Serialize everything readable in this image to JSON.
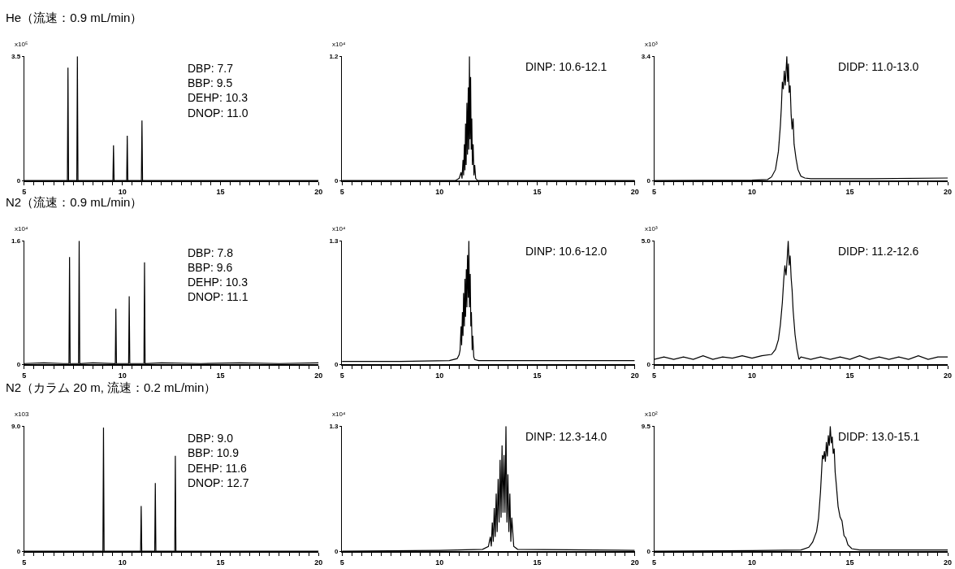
{
  "chart_data": [
    {
      "type": "line",
      "title": "He（流速：0.9 mL/min）",
      "ylabel": "x10⁵",
      "xlim": [
        5,
        20
      ],
      "ylim": [
        0,
        3.5
      ],
      "yticks": [
        0,
        3.5
      ],
      "xticks": [
        5,
        {
          "value": 5.5,
          "label": null
        },
        {
          "value": 6,
          "label": null
        },
        {
          "value": 6.5,
          "label": null
        },
        {
          "value": 7,
          "label": null
        },
        {
          "value": 7.5,
          "label": null
        },
        {
          "value": 8,
          "label": null
        },
        {
          "value": 8.5,
          "label": null
        },
        {
          "value": 9,
          "label": null
        },
        {
          "value": 9.5,
          "label": null
        },
        10,
        {
          "value": 10.5,
          "label": null
        },
        {
          "value": 11,
          "label": null
        },
        {
          "value": 11.5,
          "label": null
        },
        {
          "value": 12,
          "label": null
        },
        {
          "value": 12.5,
          "label": null
        },
        {
          "value": 13,
          "label": null
        },
        {
          "value": 13.5,
          "label": null
        },
        {
          "value": 14,
          "label": null
        },
        {
          "value": 14.5,
          "label": null
        },
        15,
        {
          "value": 15.5,
          "label": null
        },
        {
          "value": 16,
          "label": null
        },
        {
          "value": 16.5,
          "label": null
        },
        {
          "value": 17,
          "label": null
        },
        {
          "value": 17.5,
          "label": null
        },
        {
          "value": 18,
          "label": null
        },
        {
          "value": 18.5,
          "label": null
        },
        {
          "value": 19,
          "label": null
        },
        {
          "value": 19.5,
          "label": null
        },
        20
      ],
      "grid": false,
      "legend": false,
      "line_style": "solid",
      "annotations": [
        "DBP: 7.7",
        "BBP: 9.5",
        "DEHP: 10.3",
        "DNOP: 11.0"
      ],
      "series": [
        {
          "color": "#000000",
          "x": [
            5,
            7.2,
            7.23,
            7.26,
            7.68,
            7.71,
            7.74,
            9.52,
            9.55,
            9.58,
            10.22,
            10.25,
            10.28,
            10.97,
            11.0,
            11.03,
            20
          ],
          "values": [
            0,
            0,
            3.18,
            0,
            0,
            3.5,
            0,
            0,
            0.99,
            0,
            0,
            1.26,
            0,
            0,
            1.69,
            0,
            0
          ]
        }
      ]
    },
    {
      "type": "line",
      "ylabel": "x10⁴",
      "xlim": [
        5,
        20
      ],
      "ylim": [
        0,
        1.2
      ],
      "yticks": [
        0,
        1.2
      ],
      "xticks": [
        5,
        {
          "value": 5.5,
          "label": null
        },
        {
          "value": 6,
          "label": null
        },
        {
          "value": 6.5,
          "label": null
        },
        {
          "value": 7,
          "label": null
        },
        {
          "value": 7.5,
          "label": null
        },
        {
          "value": 8,
          "label": null
        },
        {
          "value": 8.5,
          "label": null
        },
        {
          "value": 9,
          "label": null
        },
        {
          "value": 9.5,
          "label": null
        },
        10,
        {
          "value": 10.5,
          "label": null
        },
        {
          "value": 11,
          "label": null
        },
        {
          "value": 11.5,
          "label": null
        },
        {
          "value": 12,
          "label": null
        },
        {
          "value": 12.5,
          "label": null
        },
        {
          "value": 13,
          "label": null
        },
        {
          "value": 13.5,
          "label": null
        },
        {
          "value": 14,
          "label": null
        },
        {
          "value": 14.5,
          "label": null
        },
        15,
        {
          "value": 15.5,
          "label": null
        },
        {
          "value": 16,
          "label": null
        },
        {
          "value": 16.5,
          "label": null
        },
        {
          "value": 17,
          "label": null
        },
        {
          "value": 17.5,
          "label": null
        },
        {
          "value": 18,
          "label": null
        },
        {
          "value": 18.5,
          "label": null
        },
        {
          "value": 19,
          "label": null
        },
        {
          "value": 19.5,
          "label": null
        },
        20
      ],
      "grid": false,
      "legend": false,
      "line_style": "solid",
      "annotations": [
        "DINP: 10.6-12.1"
      ],
      "series": [
        {
          "color": "#000000",
          "x": [
            5,
            10.8,
            11.0,
            11.1,
            11.15,
            11.2,
            11.23,
            11.27,
            11.3,
            11.33,
            11.36,
            11.4,
            11.43,
            11.47,
            11.5,
            11.53,
            11.56,
            11.59,
            11.62,
            11.65,
            11.68,
            11.72,
            11.76,
            11.8,
            11.85,
            11.95,
            20
          ],
          "values": [
            0,
            0,
            0.02,
            0.08,
            0.02,
            0.2,
            0.05,
            0.35,
            0.1,
            0.55,
            0.15,
            0.75,
            0.25,
            0.9,
            0.3,
            1.2,
            0.4,
            1.0,
            0.3,
            0.6,
            0.15,
            0.35,
            0.05,
            0.15,
            0.02,
            0,
            0
          ]
        }
      ]
    },
    {
      "type": "line",
      "ylabel": "x10³",
      "xlim": [
        5,
        20
      ],
      "ylim": [
        0,
        3.4
      ],
      "yticks": [
        0,
        3.4
      ],
      "xticks": [
        5,
        {
          "value": 5.5,
          "label": null
        },
        {
          "value": 6,
          "label": null
        },
        {
          "value": 6.5,
          "label": null
        },
        {
          "value": 7,
          "label": null
        },
        {
          "value": 7.5,
          "label": null
        },
        {
          "value": 8,
          "label": null
        },
        {
          "value": 8.5,
          "label": null
        },
        {
          "value": 9,
          "label": null
        },
        {
          "value": 9.5,
          "label": null
        },
        10,
        {
          "value": 10.5,
          "label": null
        },
        {
          "value": 11,
          "label": null
        },
        {
          "value": 11.5,
          "label": null
        },
        {
          "value": 12,
          "label": null
        },
        {
          "value": 12.5,
          "label": null
        },
        {
          "value": 13,
          "label": null
        },
        {
          "value": 13.5,
          "label": null
        },
        {
          "value": 14,
          "label": null
        },
        {
          "value": 14.5,
          "label": null
        },
        15,
        {
          "value": 15.5,
          "label": null
        },
        {
          "value": 16,
          "label": null
        },
        {
          "value": 16.5,
          "label": null
        },
        {
          "value": 17,
          "label": null
        },
        {
          "value": 17.5,
          "label": null
        },
        {
          "value": 18,
          "label": null
        },
        {
          "value": 18.5,
          "label": null
        },
        {
          "value": 19,
          "label": null
        },
        {
          "value": 19.5,
          "label": null
        },
        20
      ],
      "grid": false,
      "legend": false,
      "line_style": "solid",
      "annotations": [
        "DIDP: 11.0-13.0"
      ],
      "series": [
        {
          "color": "#000000",
          "x": [
            5,
            10,
            10.8,
            11.0,
            11.2,
            11.35,
            11.45,
            11.5,
            11.55,
            11.6,
            11.65,
            11.7,
            11.75,
            11.78,
            11.82,
            11.86,
            11.9,
            11.95,
            12.0,
            12.05,
            12.1,
            12.15,
            12.25,
            12.35,
            12.5,
            12.7,
            13,
            16,
            20
          ],
          "values": [
            0,
            0.01,
            0.03,
            0.1,
            0.3,
            0.8,
            1.5,
            2.0,
            2.7,
            2.5,
            3.0,
            2.6,
            3.1,
            3.4,
            2.7,
            3.2,
            2.4,
            2.6,
            1.8,
            1.4,
            1.7,
            1.0,
            0.6,
            0.3,
            0.12,
            0.07,
            0.05,
            0.05,
            0.07
          ]
        }
      ]
    },
    {
      "type": "line",
      "title": "N2（流速：0.9 mL/min）",
      "ylabel": "x10⁴",
      "xlim": [
        5,
        20
      ],
      "ylim": [
        0,
        1.6
      ],
      "yticks": [
        0,
        1.6
      ],
      "xticks": [
        5,
        {
          "value": 5.5,
          "label": null
        },
        {
          "value": 6,
          "label": null
        },
        {
          "value": 6.5,
          "label": null
        },
        {
          "value": 7,
          "label": null
        },
        {
          "value": 7.5,
          "label": null
        },
        {
          "value": 8,
          "label": null
        },
        {
          "value": 8.5,
          "label": null
        },
        {
          "value": 9,
          "label": null
        },
        {
          "value": 9.5,
          "label": null
        },
        10,
        {
          "value": 10.5,
          "label": null
        },
        {
          "value": 11,
          "label": null
        },
        {
          "value": 11.5,
          "label": null
        },
        {
          "value": 12,
          "label": null
        },
        {
          "value": 12.5,
          "label": null
        },
        {
          "value": 13,
          "label": null
        },
        {
          "value": 13.5,
          "label": null
        },
        {
          "value": 14,
          "label": null
        },
        {
          "value": 14.5,
          "label": null
        },
        15,
        {
          "value": 15.5,
          "label": null
        },
        {
          "value": 16,
          "label": null
        },
        {
          "value": 16.5,
          "label": null
        },
        {
          "value": 17,
          "label": null
        },
        {
          "value": 17.5,
          "label": null
        },
        {
          "value": 18,
          "label": null
        },
        {
          "value": 18.5,
          "label": null
        },
        {
          "value": 19,
          "label": null
        },
        {
          "value": 19.5,
          "label": null
        },
        20
      ],
      "grid": false,
      "legend": false,
      "line_style": "solid",
      "annotations": [
        "DBP: 7.8",
        "BBP: 9.6",
        "DEHP: 10.3",
        "DNOP: 11.1"
      ],
      "series": [
        {
          "color": "#000000",
          "x": [
            5,
            6,
            7,
            7.28,
            7.31,
            7.34,
            7.77,
            7.8,
            7.83,
            8.5,
            9.64,
            9.67,
            9.7,
            10.32,
            10.35,
            10.38,
            11.1,
            11.13,
            11.16,
            12,
            14,
            16,
            18,
            20
          ],
          "values": [
            0.01,
            0.02,
            0.01,
            0.01,
            1.39,
            0.01,
            0.01,
            1.6,
            0.01,
            0.02,
            0.01,
            0.72,
            0.01,
            0.01,
            0.88,
            0.01,
            0.01,
            1.32,
            0.01,
            0.02,
            0.01,
            0.02,
            0.01,
            0.02
          ]
        }
      ]
    },
    {
      "type": "line",
      "ylabel": "x10⁴",
      "xlim": [
        5,
        20
      ],
      "ylim": [
        0,
        1.3
      ],
      "yticks": [
        0,
        1.3
      ],
      "xticks": [
        5,
        {
          "value": 5.5,
          "label": null
        },
        {
          "value": 6,
          "label": null
        },
        {
          "value": 6.5,
          "label": null
        },
        {
          "value": 7,
          "label": null
        },
        {
          "value": 7.5,
          "label": null
        },
        {
          "value": 8,
          "label": null
        },
        {
          "value": 8.5,
          "label": null
        },
        {
          "value": 9,
          "label": null
        },
        {
          "value": 9.5,
          "label": null
        },
        10,
        {
          "value": 10.5,
          "label": null
        },
        {
          "value": 11,
          "label": null
        },
        {
          "value": 11.5,
          "label": null
        },
        {
          "value": 12,
          "label": null
        },
        {
          "value": 12.5,
          "label": null
        },
        {
          "value": 13,
          "label": null
        },
        {
          "value": 13.5,
          "label": null
        },
        {
          "value": 14,
          "label": null
        },
        {
          "value": 14.5,
          "label": null
        },
        15,
        {
          "value": 15.5,
          "label": null
        },
        {
          "value": 16,
          "label": null
        },
        {
          "value": 16.5,
          "label": null
        },
        {
          "value": 17,
          "label": null
        },
        {
          "value": 17.5,
          "label": null
        },
        {
          "value": 18,
          "label": null
        },
        {
          "value": 18.5,
          "label": null
        },
        {
          "value": 19,
          "label": null
        },
        {
          "value": 19.5,
          "label": null
        },
        20
      ],
      "grid": false,
      "legend": false,
      "line_style": "solid",
      "annotations": [
        "DINP: 10.6-12.0"
      ],
      "series": [
        {
          "color": "#000000",
          "x": [
            5,
            8,
            10.5,
            10.9,
            11.0,
            11.05,
            11.1,
            11.13,
            11.17,
            11.2,
            11.23,
            11.27,
            11.3,
            11.33,
            11.37,
            11.4,
            11.43,
            11.47,
            11.5,
            11.53,
            11.57,
            11.6,
            11.63,
            11.67,
            11.7,
            11.75,
            11.8,
            12.0,
            15,
            20
          ],
          "values": [
            0.03,
            0.03,
            0.04,
            0.06,
            0.1,
            0.15,
            0.4,
            0.2,
            0.55,
            0.3,
            0.75,
            0.4,
            0.9,
            0.5,
            1.0,
            0.6,
            1.15,
            0.7,
            1.3,
            0.6,
            0.95,
            0.4,
            0.55,
            0.15,
            0.3,
            0.08,
            0.05,
            0.04,
            0.04,
            0.04
          ]
        }
      ]
    },
    {
      "type": "line",
      "ylabel": "x10³",
      "xlim": [
        5,
        20
      ],
      "ylim": [
        0,
        5.0
      ],
      "yticks": [
        0,
        {
          "value": 5,
          "label": "5.0"
        }
      ],
      "xticks": [
        5,
        {
          "value": 5.5,
          "label": null
        },
        {
          "value": 6,
          "label": null
        },
        {
          "value": 6.5,
          "label": null
        },
        {
          "value": 7,
          "label": null
        },
        {
          "value": 7.5,
          "label": null
        },
        {
          "value": 8,
          "label": null
        },
        {
          "value": 8.5,
          "label": null
        },
        {
          "value": 9,
          "label": null
        },
        {
          "value": 9.5,
          "label": null
        },
        10,
        {
          "value": 10.5,
          "label": null
        },
        {
          "value": 11,
          "label": null
        },
        {
          "value": 11.5,
          "label": null
        },
        {
          "value": 12,
          "label": null
        },
        {
          "value": 12.5,
          "label": null
        },
        {
          "value": 13,
          "label": null
        },
        {
          "value": 13.5,
          "label": null
        },
        {
          "value": 14,
          "label": null
        },
        {
          "value": 14.5,
          "label": null
        },
        15,
        {
          "value": 15.5,
          "label": null
        },
        {
          "value": 16,
          "label": null
        },
        {
          "value": 16.5,
          "label": null
        },
        {
          "value": 17,
          "label": null
        },
        {
          "value": 17.5,
          "label": null
        },
        {
          "value": 18,
          "label": null
        },
        {
          "value": 18.5,
          "label": null
        },
        {
          "value": 19,
          "label": null
        },
        {
          "value": 19.5,
          "label": null
        },
        20
      ],
      "grid": false,
      "legend": false,
      "line_style": "solid",
      "annotations": [
        "DIDP: 11.2-12.6"
      ],
      "series": [
        {
          "color": "#000000",
          "x": [
            5,
            5.5,
            6,
            6.5,
            7,
            7.5,
            8,
            8.5,
            9,
            9.5,
            10,
            10.5,
            11.0,
            11.2,
            11.35,
            11.45,
            11.55,
            11.62,
            11.68,
            11.74,
            11.8,
            11.85,
            11.9,
            11.95,
            12.0,
            12.05,
            12.1,
            12.2,
            12.3,
            12.4,
            12.5,
            13,
            13.5,
            14,
            14.5,
            15,
            15.5,
            16,
            16.5,
            17,
            17.5,
            18,
            18.5,
            19,
            19.5,
            20
          ],
          "values": [
            0.2,
            0.3,
            0.2,
            0.3,
            0.2,
            0.35,
            0.2,
            0.3,
            0.25,
            0.35,
            0.25,
            0.35,
            0.4,
            0.6,
            1.0,
            1.6,
            2.5,
            3.4,
            4.0,
            3.6,
            4.3,
            5.0,
            4.0,
            4.4,
            3.5,
            3.0,
            2.2,
            1.2,
            0.6,
            0.2,
            0.3,
            0.2,
            0.3,
            0.2,
            0.3,
            0.2,
            0.35,
            0.2,
            0.3,
            0.2,
            0.3,
            0.2,
            0.35,
            0.2,
            0.3,
            0.3
          ]
        }
      ]
    },
    {
      "type": "line",
      "title": "N2（カラム 20 m, 流速：0.2 mL/min）",
      "ylabel": "x103",
      "xlim": [
        5,
        20
      ],
      "ylim": [
        0,
        9.0
      ],
      "yticks": [
        0,
        {
          "value": 9,
          "label": "9.0"
        }
      ],
      "xticks": [
        5,
        {
          "value": 5.5,
          "label": null
        },
        {
          "value": 6,
          "label": null
        },
        {
          "value": 6.5,
          "label": null
        },
        {
          "value": 7,
          "label": null
        },
        {
          "value": 7.5,
          "label": null
        },
        {
          "value": 8,
          "label": null
        },
        {
          "value": 8.5,
          "label": null
        },
        {
          "value": 9,
          "label": null
        },
        {
          "value": 9.5,
          "label": null
        },
        10,
        {
          "value": 10.5,
          "label": null
        },
        {
          "value": 11,
          "label": null
        },
        {
          "value": 11.5,
          "label": null
        },
        {
          "value": 12,
          "label": null
        },
        {
          "value": 12.5,
          "label": null
        },
        {
          "value": 13,
          "label": null
        },
        {
          "value": 13.5,
          "label": null
        },
        {
          "value": 14,
          "label": null
        },
        {
          "value": 14.5,
          "label": null
        },
        15,
        {
          "value": 15.5,
          "label": null
        },
        {
          "value": 16,
          "label": null
        },
        {
          "value": 16.5,
          "label": null
        },
        {
          "value": 17,
          "label": null
        },
        {
          "value": 17.5,
          "label": null
        },
        {
          "value": 18,
          "label": null
        },
        {
          "value": 18.5,
          "label": null
        },
        {
          "value": 19,
          "label": null
        },
        {
          "value": 19.5,
          "label": null
        },
        20
      ],
      "grid": false,
      "legend": false,
      "line_style": "solid",
      "annotations": [
        "DBP: 9.0",
        "BBP: 10.9",
        "DEHP: 11.6",
        "DNOP: 12.7"
      ],
      "series": [
        {
          "color": "#000000",
          "x": [
            5,
            9.01,
            9.04,
            9.07,
            10.93,
            10.96,
            10.99,
            11.65,
            11.68,
            11.71,
            12.67,
            12.7,
            12.73,
            20
          ],
          "values": [
            0,
            0,
            8.9,
            0,
            0,
            3.26,
            0,
            0,
            4.91,
            0,
            0,
            6.87,
            0,
            0
          ]
        }
      ]
    },
    {
      "type": "line",
      "ylabel": "x10⁴",
      "xlim": [
        5,
        20
      ],
      "ylim": [
        0,
        1.3
      ],
      "yticks": [
        0,
        1.3
      ],
      "xticks": [
        5,
        {
          "value": 5.5,
          "label": null
        },
        {
          "value": 6,
          "label": null
        },
        {
          "value": 6.5,
          "label": null
        },
        {
          "value": 7,
          "label": null
        },
        {
          "value": 7.5,
          "label": null
        },
        {
          "value": 8,
          "label": null
        },
        {
          "value": 8.5,
          "label": null
        },
        {
          "value": 9,
          "label": null
        },
        {
          "value": 9.5,
          "label": null
        },
        10,
        {
          "value": 10.5,
          "label": null
        },
        {
          "value": 11,
          "label": null
        },
        {
          "value": 11.5,
          "label": null
        },
        {
          "value": 12,
          "label": null
        },
        {
          "value": 12.5,
          "label": null
        },
        {
          "value": 13,
          "label": null
        },
        {
          "value": 13.5,
          "label": null
        },
        {
          "value": 14,
          "label": null
        },
        {
          "value": 14.5,
          "label": null
        },
        15,
        {
          "value": 15.5,
          "label": null
        },
        {
          "value": 16,
          "label": null
        },
        {
          "value": 16.5,
          "label": null
        },
        {
          "value": 17,
          "label": null
        },
        {
          "value": 17.5,
          "label": null
        },
        {
          "value": 18,
          "label": null
        },
        {
          "value": 18.5,
          "label": null
        },
        {
          "value": 19,
          "label": null
        },
        {
          "value": 19.5,
          "label": null
        },
        20
      ],
      "grid": false,
      "legend": false,
      "line_style": "solid",
      "annotations": [
        "DINP: 12.3-14.0"
      ],
      "series": [
        {
          "color": "#000000",
          "x": [
            5,
            10,
            12.2,
            12.5,
            12.6,
            12.65,
            12.7,
            12.75,
            12.8,
            12.85,
            12.9,
            12.95,
            13.0,
            13.05,
            13.1,
            13.15,
            13.2,
            13.25,
            13.3,
            13.35,
            13.4,
            13.45,
            13.5,
            13.55,
            13.6,
            13.65,
            13.7,
            13.8,
            14.0,
            20
          ],
          "values": [
            0,
            0.01,
            0.02,
            0.05,
            0.15,
            0.05,
            0.3,
            0.1,
            0.45,
            0.15,
            0.6,
            0.2,
            0.75,
            0.3,
            0.95,
            0.35,
            1.1,
            0.4,
            1.0,
            0.4,
            1.3,
            0.3,
            0.8,
            0.2,
            0.6,
            0.1,
            0.35,
            0.05,
            0.02,
            0.01
          ]
        }
      ]
    },
    {
      "type": "line",
      "ylabel": "x10²",
      "xlim": [
        5,
        20
      ],
      "ylim": [
        0,
        9.5
      ],
      "yticks": [
        0,
        9.5
      ],
      "xticks": [
        5,
        {
          "value": 5.5,
          "label": null
        },
        {
          "value": 6,
          "label": null
        },
        {
          "value": 6.5,
          "label": null
        },
        {
          "value": 7,
          "label": null
        },
        {
          "value": 7.5,
          "label": null
        },
        {
          "value": 8,
          "label": null
        },
        {
          "value": 8.5,
          "label": null
        },
        {
          "value": 9,
          "label": null
        },
        {
          "value": 9.5,
          "label": null
        },
        10,
        {
          "value": 10.5,
          "label": null
        },
        {
          "value": 11,
          "label": null
        },
        {
          "value": 11.5,
          "label": null
        },
        {
          "value": 12,
          "label": null
        },
        {
          "value": 12.5,
          "label": null
        },
        {
          "value": 13,
          "label": null
        },
        {
          "value": 13.5,
          "label": null
        },
        {
          "value": 14,
          "label": null
        },
        {
          "value": 14.5,
          "label": null
        },
        15,
        {
          "value": 15.5,
          "label": null
        },
        {
          "value": 16,
          "label": null
        },
        {
          "value": 16.5,
          "label": null
        },
        {
          "value": 17,
          "label": null
        },
        {
          "value": 17.5,
          "label": null
        },
        {
          "value": 18,
          "label": null
        },
        {
          "value": 18.5,
          "label": null
        },
        {
          "value": 19,
          "label": null
        },
        {
          "value": 19.5,
          "label": null
        },
        20
      ],
      "grid": false,
      "legend": false,
      "line_style": "solid",
      "annotations": [
        "DIDP: 13.0-15.1"
      ],
      "series": [
        {
          "color": "#000000",
          "x": [
            5,
            10,
            12.5,
            12.9,
            13.1,
            13.3,
            13.4,
            13.5,
            13.6,
            13.65,
            13.7,
            13.75,
            13.8,
            13.85,
            13.9,
            13.95,
            14.0,
            14.05,
            14.1,
            14.15,
            14.2,
            14.25,
            14.3,
            14.4,
            14.5,
            14.6,
            14.7,
            14.8,
            14.9,
            15.1,
            15.5,
            20
          ],
          "values": [
            0,
            0.05,
            0.1,
            0.3,
            0.7,
            1.5,
            2.5,
            4.5,
            7.3,
            7.0,
            7.6,
            6.8,
            8.3,
            7.2,
            8.8,
            8.0,
            9.5,
            8.2,
            8.7,
            7.4,
            7.8,
            6.0,
            5.2,
            3.4,
            2.6,
            2.3,
            1.2,
            1.0,
            0.5,
            0.2,
            0.1,
            0.1
          ]
        }
      ]
    }
  ]
}
